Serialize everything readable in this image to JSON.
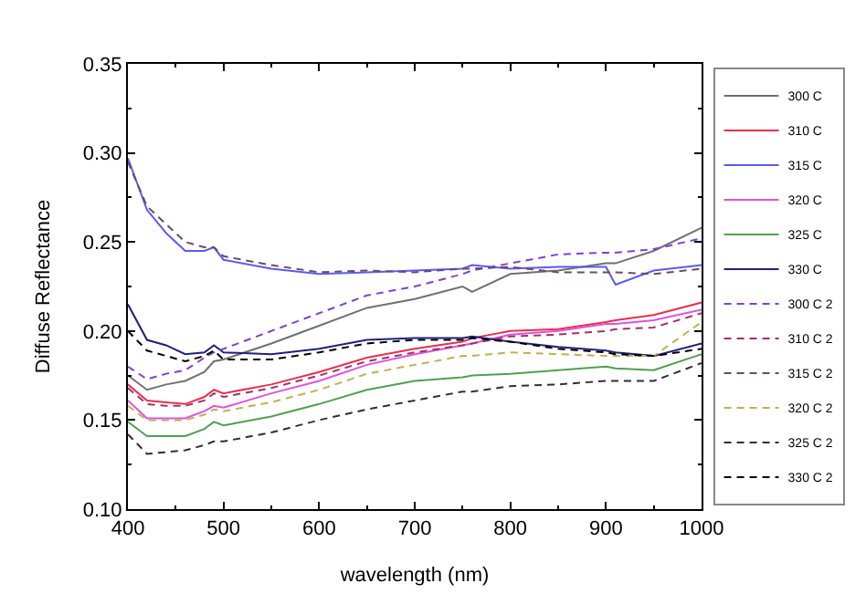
{
  "chart_data": {
    "type": "line",
    "xlabel": "wavelength (nm)",
    "ylabel": "Diffuse Reflectance",
    "x": [
      400,
      420,
      440,
      460,
      480,
      490,
      500,
      550,
      600,
      650,
      700,
      750,
      760,
      800,
      850,
      900,
      910,
      950,
      1000
    ],
    "xlim": [
      400,
      1000
    ],
    "xticks": [
      400,
      500,
      600,
      700,
      800,
      900,
      1000
    ],
    "ylim": [
      0.1,
      0.35
    ],
    "yticks": [
      {
        "value": 0.1,
        "label": "0.10"
      },
      {
        "value": 0.15,
        "label": "0.15"
      },
      {
        "value": 0.2,
        "label": "0.20"
      },
      {
        "value": 0.25,
        "label": "0.25"
      },
      {
        "value": 0.3,
        "label": "0.30"
      },
      {
        "value": 0.35,
        "label": "0.35"
      }
    ],
    "legend": "right",
    "marker": "none",
    "series": [
      {
        "name": "300 C",
        "color": "#707070",
        "line_style": "solid",
        "values": [
          0.175,
          0.167,
          0.17,
          0.172,
          0.177,
          0.183,
          0.184,
          0.193,
          0.203,
          0.213,
          0.218,
          0.225,
          0.222,
          0.232,
          0.234,
          0.238,
          0.238,
          0.245,
          0.258
        ]
      },
      {
        "name": "310 C",
        "color": "#e8304a",
        "line_style": "solid",
        "values": [
          0.17,
          0.161,
          0.16,
          0.159,
          0.163,
          0.167,
          0.165,
          0.17,
          0.177,
          0.185,
          0.19,
          0.194,
          0.196,
          0.2,
          0.201,
          0.205,
          0.206,
          0.209,
          0.216
        ]
      },
      {
        "name": "315 C",
        "color": "#5a5af0",
        "line_style": "solid",
        "values": [
          0.297,
          0.268,
          0.255,
          0.245,
          0.245,
          0.247,
          0.24,
          0.235,
          0.232,
          0.233,
          0.234,
          0.235,
          0.237,
          0.235,
          0.236,
          0.236,
          0.226,
          0.234,
          0.237
        ]
      },
      {
        "name": "320 C",
        "color": "#e050e0",
        "line_style": "solid",
        "values": [
          0.161,
          0.151,
          0.151,
          0.151,
          0.155,
          0.158,
          0.157,
          0.165,
          0.172,
          0.181,
          0.187,
          0.192,
          0.193,
          0.198,
          0.2,
          0.204,
          0.204,
          0.206,
          0.212
        ]
      },
      {
        "name": "325 C",
        "color": "#50a050",
        "line_style": "solid",
        "values": [
          0.149,
          0.141,
          0.141,
          0.141,
          0.145,
          0.149,
          0.147,
          0.152,
          0.159,
          0.167,
          0.172,
          0.174,
          0.175,
          0.176,
          0.178,
          0.18,
          0.179,
          0.178,
          0.187
        ]
      },
      {
        "name": "330 C",
        "color": "#20207a",
        "line_style": "solid",
        "values": [
          0.215,
          0.195,
          0.192,
          0.187,
          0.188,
          0.192,
          0.188,
          0.187,
          0.19,
          0.195,
          0.196,
          0.196,
          0.197,
          0.194,
          0.191,
          0.189,
          0.188,
          0.186,
          0.193
        ]
      },
      {
        "name": "300 C 2",
        "color": "#8040d0",
        "line_style": "dashed",
        "values": [
          0.18,
          0.173,
          0.176,
          0.178,
          0.185,
          0.188,
          0.19,
          0.2,
          0.21,
          0.22,
          0.225,
          0.232,
          0.234,
          0.238,
          0.243,
          0.244,
          0.244,
          0.246,
          0.252
        ]
      },
      {
        "name": "310 C 2",
        "color": "#a0306a",
        "line_style": "dashed",
        "values": [
          0.168,
          0.159,
          0.158,
          0.158,
          0.161,
          0.165,
          0.163,
          0.168,
          0.175,
          0.183,
          0.188,
          0.192,
          0.193,
          0.197,
          0.198,
          0.2,
          0.201,
          0.202,
          0.21
        ]
      },
      {
        "name": "315 C 2",
        "color": "#6a4a6a",
        "line_style": "dashed",
        "values": [
          0.295,
          0.27,
          0.26,
          0.25,
          0.247,
          0.247,
          0.242,
          0.237,
          0.233,
          0.234,
          0.233,
          0.235,
          0.235,
          0.236,
          0.233,
          0.233,
          0.233,
          0.232,
          0.235
        ]
      },
      {
        "name": "320 C 2",
        "color": "#c0b050",
        "line_style": "dashed",
        "values": [
          0.158,
          0.15,
          0.15,
          0.15,
          0.153,
          0.156,
          0.155,
          0.16,
          0.167,
          0.176,
          0.181,
          0.186,
          0.186,
          0.188,
          0.187,
          0.186,
          0.186,
          0.186,
          0.205
        ]
      },
      {
        "name": "325 C 2",
        "color": "#303030",
        "line_style": "dashed",
        "values": [
          0.142,
          0.131,
          0.132,
          0.133,
          0.136,
          0.138,
          0.138,
          0.143,
          0.15,
          0.156,
          0.161,
          0.166,
          0.166,
          0.169,
          0.17,
          0.172,
          0.172,
          0.172,
          0.182
        ]
      },
      {
        "name": "330 C 2",
        "color": "#000000",
        "line_style": "dashed",
        "values": [
          0.2,
          0.189,
          0.186,
          0.183,
          0.186,
          0.189,
          0.184,
          0.184,
          0.188,
          0.193,
          0.195,
          0.195,
          0.196,
          0.194,
          0.19,
          0.188,
          0.187,
          0.186,
          0.19
        ]
      }
    ]
  }
}
